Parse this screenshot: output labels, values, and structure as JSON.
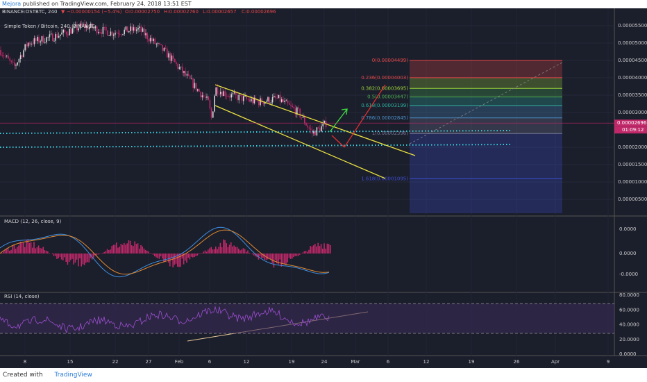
{
  "header": {
    "author": "Mejora",
    "text": "published on TradingView.com, February 24, 2018 13:51 EST"
  },
  "ticker": {
    "symbol": "BINANCE:OSTBTC, 240",
    "arrow": "▼",
    "change": "−0.00000154 (−5.4%)",
    "open": "O:0.00002750",
    "high": "H:0.00002760",
    "low": "L:0.00002657",
    "close": "C:0.00002696"
  },
  "chart_data": {
    "type": "candlestick",
    "title": "Simple Token / Bitcoin, 240, BINANCE",
    "yticks": [
      {
        "value": 5.5e-05,
        "label": "0.00005500"
      },
      {
        "value": 5e-05,
        "label": "0.00005000"
      },
      {
        "value": 4.5e-05,
        "label": "0.00004500"
      },
      {
        "value": 4e-05,
        "label": "0.00004000"
      },
      {
        "value": 3.5e-05,
        "label": "0.00003500"
      },
      {
        "value": 3e-05,
        "label": "0.00003000"
      },
      {
        "value": 2e-05,
        "label": "0.00002000"
      },
      {
        "value": 1.5e-05,
        "label": "0.00001500"
      },
      {
        "value": 1e-05,
        "label": "0.00001000"
      },
      {
        "value": 5e-06,
        "label": "0.00000500"
      }
    ],
    "last_price": {
      "value": 2.696e-05,
      "label": "0.00002696"
    },
    "countdown": "01:09:12",
    "fib_levels": [
      {
        "label": "0(0.00004499)",
        "price": 4.499e-05,
        "color": "#e04848"
      },
      {
        "label": "0.236(0.00004003)",
        "price": 4.003e-05,
        "color": "#e04848"
      },
      {
        "label": "0.382(0.00003695)",
        "price": 3.695e-05,
        "color": "#9bd23c"
      },
      {
        "label": "0.5(0.00003447)",
        "price": 3.447e-05,
        "color": "#4caf50"
      },
      {
        "label": "0.618(0.00003199)",
        "price": 3.199e-05,
        "color": "#2fb3a0"
      },
      {
        "label": "0.786(0.00002845)",
        "price": 2.845e-05,
        "color": "#4a8fc4"
      },
      {
        "label": "1(0.00002396)",
        "price": 2.396e-05,
        "color": "#7a7a9a"
      },
      {
        "label": "1.618(0.00001095)",
        "price": 1.095e-05,
        "color": "#3d4fd0"
      }
    ],
    "x_labels": [
      "8",
      "15",
      "22",
      "27",
      "Feb",
      "6",
      "12",
      "19",
      "24",
      "Mar",
      "6",
      "12",
      "19",
      "26",
      "Apr",
      "9"
    ]
  },
  "macd": {
    "title": "MACD (12, 26, close, 9)",
    "ticks": [
      "0.0000",
      "0.0000",
      "-0.0000"
    ]
  },
  "rsi": {
    "title": "RSI (14, close)",
    "ylim": [
      0,
      80
    ],
    "yticks": [
      {
        "value": 80,
        "label": "80.0000"
      },
      {
        "value": 60,
        "label": "60.0000"
      },
      {
        "value": 40,
        "label": "40.0000"
      },
      {
        "value": 20,
        "label": "20.0000"
      },
      {
        "value": 0,
        "label": "0.0000"
      }
    ]
  },
  "footer": {
    "created": "Created with",
    "brand": "TradingView"
  }
}
